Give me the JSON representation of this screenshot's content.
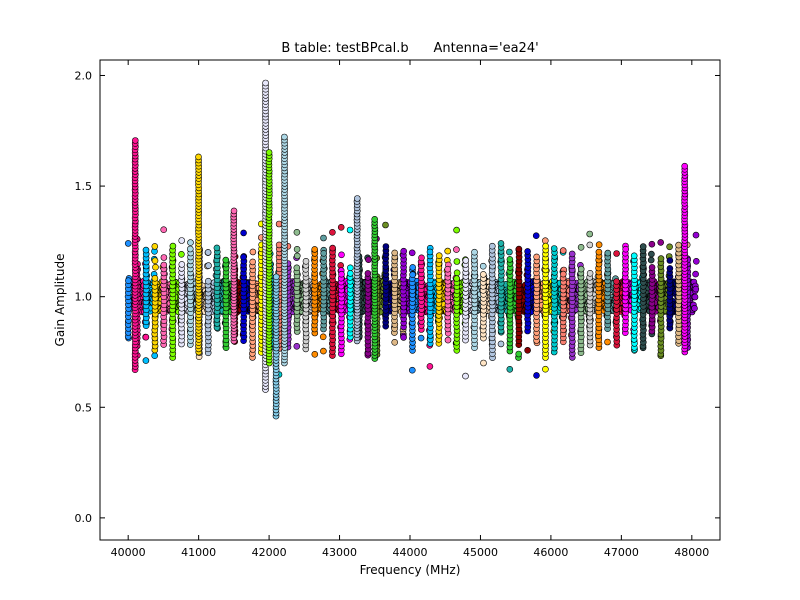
{
  "chart_data": {
    "type": "scatter",
    "title": "B table: testBPcal.b      Antenna='ea24'",
    "xlabel": "Frequency (MHz)",
    "ylabel": "Gain Amplitude",
    "xlim": [
      39600,
      48400
    ],
    "ylim": [
      -0.1,
      2.07
    ],
    "x_ticks": [
      40000,
      41000,
      42000,
      43000,
      44000,
      45000,
      46000,
      47000,
      48000
    ],
    "y_ticks": [
      0.0,
      0.5,
      1.0,
      1.5,
      2.0
    ],
    "x_tick_labels": [
      "40000",
      "41000",
      "42000",
      "43000",
      "44000",
      "45000",
      "46000",
      "47000",
      "48000"
    ],
    "y_tick_labels": [
      "0.0",
      "0.5",
      "1.0",
      "1.5",
      "2.0"
    ],
    "grid": false,
    "legend": "none",
    "marker": "circle",
    "spw_start_mhz": 40000,
    "spw_width_mhz": 128,
    "spw_count": 64,
    "baseline_amplitude": 1.0,
    "edge_spikes": [
      {
        "x": 40100,
        "min": 0.67,
        "max": 1.72,
        "color": "#ff1493"
      },
      {
        "x": 41000,
        "min": 0.75,
        "max": 1.64,
        "color": "#ffd700"
      },
      {
        "x": 41500,
        "min": 0.8,
        "max": 1.4,
        "color": "#ff69b4"
      },
      {
        "x": 41950,
        "min": 0.58,
        "max": 1.97,
        "color": "#e6e6fa"
      },
      {
        "x": 42000,
        "min": 0.7,
        "max": 1.66,
        "color": "#7cfc00"
      },
      {
        "x": 42100,
        "min": 0.46,
        "max": 1.1,
        "color": "#87ceeb"
      },
      {
        "x": 42220,
        "min": 0.7,
        "max": 1.73,
        "color": "#add8e6"
      },
      {
        "x": 43250,
        "min": 0.8,
        "max": 1.45,
        "color": "#b0c4de"
      },
      {
        "x": 43500,
        "min": 0.72,
        "max": 1.36,
        "color": "#32cd32"
      },
      {
        "x": 47900,
        "min": 0.75,
        "max": 1.6,
        "color": "#ff00ff"
      }
    ],
    "colors": [
      "#1e90ff",
      "#ff1493",
      "#00bfff",
      "#ffd700",
      "#ff69b4",
      "#7cfc00",
      "#e6e6fa",
      "#add8e6",
      "#ffe4c4",
      "#b0c4de",
      "#20b2aa",
      "#32cd32",
      "#8b0000",
      "#0000cd",
      "#ffa07a",
      "#ffff00",
      "#00ced1",
      "#fa8072",
      "#9932cc",
      "#8fbc8f",
      "#d3d3d3",
      "#ff8c00",
      "#5f9ea0",
      "#dc143c",
      "#ff00ff",
      "#00ffff",
      "#2f4f4f",
      "#8b008b",
      "#6b8e23",
      "#000080",
      "#deb887",
      "#9400d3"
    ]
  }
}
